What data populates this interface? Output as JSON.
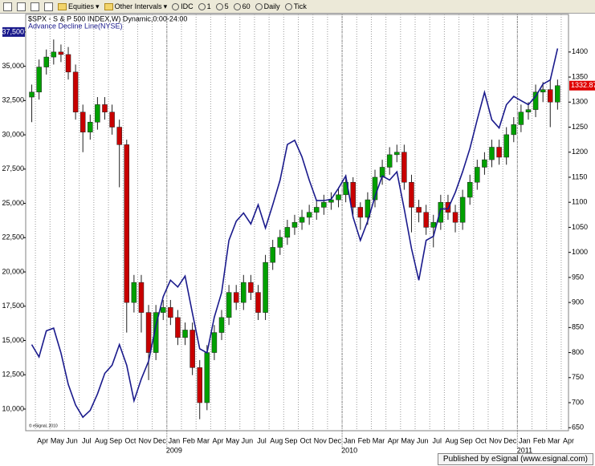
{
  "toolbar": {
    "items": [
      "Equities",
      "Other Intervals",
      "IDC",
      "1",
      "5",
      "60",
      "Daily",
      "Tick"
    ]
  },
  "footer": "Published by eSignal (www.esignal.com)",
  "chart_data": {
    "type": "candlestick",
    "title": "$SPX - S & P 500 INDEX,W) Dynamic,0:00-24:00",
    "copyright": "© eSignal, 2010",
    "categories": [
      null,
      "Apr",
      null,
      "May",
      null,
      "Jun",
      null,
      "Jul",
      null,
      "Aug",
      null,
      "Sep",
      null,
      "Oct",
      null,
      "Nov",
      null,
      "Dec",
      null,
      "Jan",
      null,
      "Feb",
      null,
      "Mar",
      null,
      "Apr",
      null,
      "May",
      null,
      "Jun",
      null,
      "Jul",
      null,
      "Aug",
      null,
      "Sep",
      null,
      "Oct",
      null,
      "Nov",
      null,
      "Dec",
      null,
      "Jan",
      null,
      "Feb",
      null,
      "Mar",
      null,
      "Apr",
      null,
      "May",
      null,
      "Jun",
      null,
      "Jul",
      null,
      "Aug",
      null,
      "Sep",
      null,
      "Oct",
      null,
      "Nov",
      null,
      "Dec",
      null,
      "Jan",
      null,
      "Feb",
      null,
      "Mar",
      null,
      "Apr"
    ],
    "year_ticks": [
      {
        "value": 19,
        "label": "2009"
      },
      {
        "value": 43,
        "label": "2010"
      },
      {
        "value": 67,
        "label": "2011"
      }
    ],
    "candles": {
      "axis": "y2",
      "up_color": "#00a000",
      "down_color": "#c80000",
      "open": [
        1310,
        1320,
        1370,
        1390,
        1400,
        1395,
        1360,
        1280,
        1240,
        1260,
        1295,
        1280,
        1250,
        1215,
        900,
        940,
        880,
        800,
        880,
        890,
        870,
        830,
        845,
        770,
        700,
        800,
        840,
        870,
        920,
        900,
        940,
        920,
        880,
        980,
        1010,
        1030,
        1050,
        1060,
        1070,
        1080,
        1090,
        1100,
        1105,
        1115,
        1140,
        1090,
        1070,
        1105,
        1150,
        1170,
        1195,
        1200,
        1140,
        1090,
        1080,
        1050,
        1060,
        1100,
        1080,
        1060,
        1110,
        1140,
        1170,
        1185,
        1210,
        1190,
        1235,
        1255,
        1280,
        1285,
        1320,
        1325,
        1300,
        null
      ],
      "high": [
        1335,
        1385,
        1405,
        1425,
        1415,
        1410,
        1375,
        1295,
        1275,
        1310,
        1310,
        1295,
        1265,
        1225,
        955,
        955,
        895,
        895,
        905,
        905,
        885,
        860,
        860,
        785,
        815,
        855,
        885,
        935,
        935,
        955,
        955,
        935,
        995,
        1025,
        1045,
        1065,
        1075,
        1085,
        1095,
        1105,
        1115,
        1120,
        1130,
        1155,
        1150,
        1100,
        1120,
        1165,
        1185,
        1210,
        1215,
        1215,
        1155,
        1105,
        1095,
        1075,
        1115,
        1115,
        1095,
        1125,
        1155,
        1185,
        1200,
        1225,
        1225,
        1250,
        1270,
        1295,
        1300,
        1335,
        1340,
        1345,
        1345,
        null
      ],
      "low": [
        1260,
        1305,
        1355,
        1375,
        1380,
        1345,
        1265,
        1200,
        1225,
        1245,
        1265,
        1235,
        1130,
        840,
        880,
        840,
        745,
        785,
        865,
        855,
        815,
        815,
        755,
        667,
        685,
        785,
        825,
        855,
        885,
        885,
        905,
        865,
        865,
        965,
        995,
        1015,
        1035,
        1045,
        1055,
        1065,
        1075,
        1085,
        1090,
        1100,
        1075,
        1045,
        1055,
        1090,
        1135,
        1155,
        1180,
        1125,
        1040,
        1060,
        1035,
        1010,
        1045,
        1065,
        1040,
        1045,
        1095,
        1125,
        1155,
        1170,
        1175,
        1175,
        1220,
        1240,
        1265,
        1270,
        1300,
        1250,
        1285,
        null
      ],
      "close": [
        1320,
        1370,
        1390,
        1400,
        1395,
        1360,
        1280,
        1240,
        1260,
        1295,
        1280,
        1250,
        1215,
        900,
        940,
        880,
        800,
        880,
        890,
        870,
        830,
        845,
        770,
        700,
        800,
        840,
        870,
        920,
        900,
        940,
        920,
        880,
        980,
        1010,
        1030,
        1050,
        1060,
        1070,
        1080,
        1090,
        1100,
        1105,
        1115,
        1140,
        1090,
        1070,
        1105,
        1150,
        1170,
        1195,
        1200,
        1140,
        1090,
        1080,
        1050,
        1060,
        1100,
        1080,
        1060,
        1110,
        1140,
        1170,
        1185,
        1210,
        1190,
        1235,
        1255,
        1280,
        1285,
        1320,
        1325,
        1300,
        1332.87,
        null
      ]
    },
    "last_price_color": "#e00000",
    "series": [
      {
        "name": "Advance Decline Line(NYSE)",
        "color": "#1a1a8c",
        "axis": "y",
        "values": [
          14700,
          13800,
          15700,
          15900,
          14100,
          11800,
          10300,
          9400,
          9900,
          11100,
          12600,
          13200,
          14700,
          13200,
          10600,
          12200,
          13500,
          16100,
          18200,
          19400,
          18900,
          19700,
          17000,
          14400,
          14100,
          16700,
          18500,
          22300,
          23700,
          24300,
          23500,
          24900,
          23200,
          24900,
          26700,
          29300,
          29600,
          28400,
          26700,
          25200,
          25200,
          25300,
          26100,
          27000,
          24000,
          22300,
          23700,
          25500,
          27000,
          26700,
          27300,
          24600,
          21700,
          19400,
          22300,
          22600,
          24600,
          24600,
          25800,
          27300,
          29000,
          31100,
          33100,
          31100,
          30500,
          32200,
          32800,
          32500,
          32200,
          32800,
          33700,
          34000,
          36300,
          null
        ]
      }
    ],
    "ylim": [
      8420,
      38780
    ],
    "yticks": [
      {
        "value": 10000,
        "label": "10,000"
      },
      {
        "value": 12500,
        "label": "12,500"
      },
      {
        "value": 15000,
        "label": "15,000"
      },
      {
        "value": 17500,
        "label": "17,500"
      },
      {
        "value": 20000,
        "label": "20,000"
      },
      {
        "value": 22500,
        "label": "22,500"
      },
      {
        "value": 25000,
        "label": "25,000"
      },
      {
        "value": 27500,
        "label": "27,500"
      },
      {
        "value": 30000,
        "label": "30,000"
      },
      {
        "value": 32500,
        "label": "32,500"
      },
      {
        "value": 35000,
        "label": "35,000"
      },
      {
        "value": 37500,
        "label": "37,500"
      }
    ],
    "y2lim": [
      644,
      1475
    ],
    "y2ticks": [
      650,
      700,
      750,
      800,
      850,
      900,
      950,
      1000,
      1050,
      1100,
      1150,
      1200,
      1250,
      1300,
      1350,
      1400
    ],
    "grid": true
  }
}
